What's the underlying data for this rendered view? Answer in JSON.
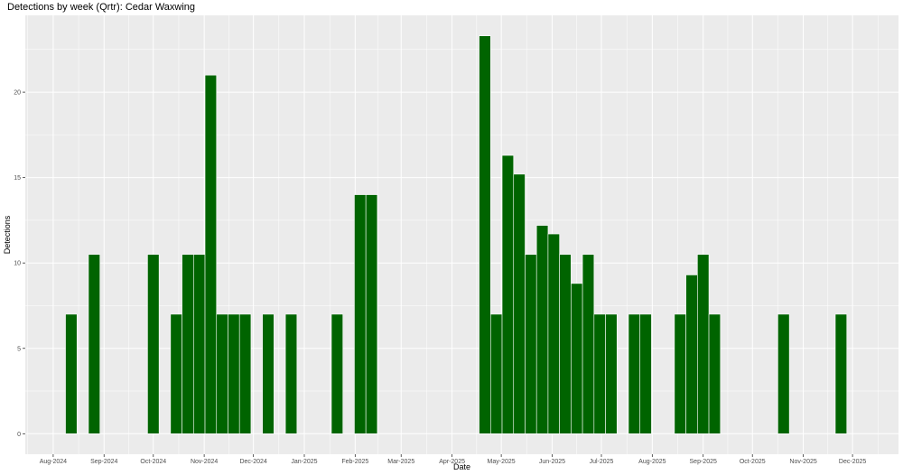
{
  "chart_data": {
    "type": "bar",
    "title": "Detections by week (Qrtr): Cedar Waxwing",
    "xlabel": "Date",
    "ylabel": "Detections",
    "ylim": [
      -1.2,
      24.5
    ],
    "xlim": [
      "2024-07-15",
      "2025-12-29"
    ],
    "grid": true,
    "bar_color": "#006400",
    "panel_background": "#ebebeb",
    "grid_color": "#ffffff",
    "y_ticks": [
      0,
      5,
      10,
      15,
      20
    ],
    "x_ticks": [
      {
        "date": "2024-08-01",
        "label": "Aug-2024"
      },
      {
        "date": "2024-09-01",
        "label": "Sep-2024"
      },
      {
        "date": "2024-10-01",
        "label": "Oct-2024"
      },
      {
        "date": "2024-11-01",
        "label": "Nov-2024"
      },
      {
        "date": "2024-12-01",
        "label": "Dec-2024"
      },
      {
        "date": "2025-01-01",
        "label": "Jan-2025"
      },
      {
        "date": "2025-02-01",
        "label": "Feb-2025"
      },
      {
        "date": "2025-03-01",
        "label": "Mar-2025"
      },
      {
        "date": "2025-04-01",
        "label": "Apr-2025"
      },
      {
        "date": "2025-05-01",
        "label": "May-2025"
      },
      {
        "date": "2025-06-01",
        "label": "Jun-2025"
      },
      {
        "date": "2025-07-01",
        "label": "Jul-2025"
      },
      {
        "date": "2025-08-01",
        "label": "Aug-2025"
      },
      {
        "date": "2025-09-01",
        "label": "Sep-2025"
      },
      {
        "date": "2025-10-01",
        "label": "Oct-2025"
      },
      {
        "date": "2025-11-01",
        "label": "Nov-2025"
      },
      {
        "date": "2025-12-01",
        "label": "Dec-2025"
      }
    ],
    "bars": [
      {
        "x": "2024-08-12",
        "y": 7
      },
      {
        "x": "2024-08-26",
        "y": 10.5
      },
      {
        "x": "2024-10-01",
        "y": 10.5
      },
      {
        "x": "2024-10-15",
        "y": 7
      },
      {
        "x": "2024-10-22",
        "y": 10.5
      },
      {
        "x": "2024-10-29",
        "y": 10.5
      },
      {
        "x": "2024-11-05",
        "y": 21
      },
      {
        "x": "2024-11-12",
        "y": 7
      },
      {
        "x": "2024-11-19",
        "y": 7
      },
      {
        "x": "2024-11-26",
        "y": 7
      },
      {
        "x": "2024-12-10",
        "y": 7
      },
      {
        "x": "2024-12-24",
        "y": 7
      },
      {
        "x": "2025-01-21",
        "y": 7
      },
      {
        "x": "2025-02-04",
        "y": 14
      },
      {
        "x": "2025-02-11",
        "y": 14
      },
      {
        "x": "2025-04-21",
        "y": 23.3
      },
      {
        "x": "2025-04-28",
        "y": 7
      },
      {
        "x": "2025-05-05",
        "y": 16.3
      },
      {
        "x": "2025-05-12",
        "y": 15.2
      },
      {
        "x": "2025-05-19",
        "y": 10.5
      },
      {
        "x": "2025-05-26",
        "y": 12.2
      },
      {
        "x": "2025-06-02",
        "y": 11.7
      },
      {
        "x": "2025-06-09",
        "y": 10.5
      },
      {
        "x": "2025-06-16",
        "y": 8.8
      },
      {
        "x": "2025-06-23",
        "y": 10.5
      },
      {
        "x": "2025-06-30",
        "y": 7
      },
      {
        "x": "2025-07-07",
        "y": 7
      },
      {
        "x": "2025-07-21",
        "y": 7
      },
      {
        "x": "2025-07-28",
        "y": 7
      },
      {
        "x": "2025-08-18",
        "y": 7
      },
      {
        "x": "2025-08-25",
        "y": 9.3
      },
      {
        "x": "2025-09-01",
        "y": 10.5
      },
      {
        "x": "2025-09-08",
        "y": 7
      },
      {
        "x": "2025-10-20",
        "y": 7
      },
      {
        "x": "2025-11-24",
        "y": 7
      }
    ]
  }
}
